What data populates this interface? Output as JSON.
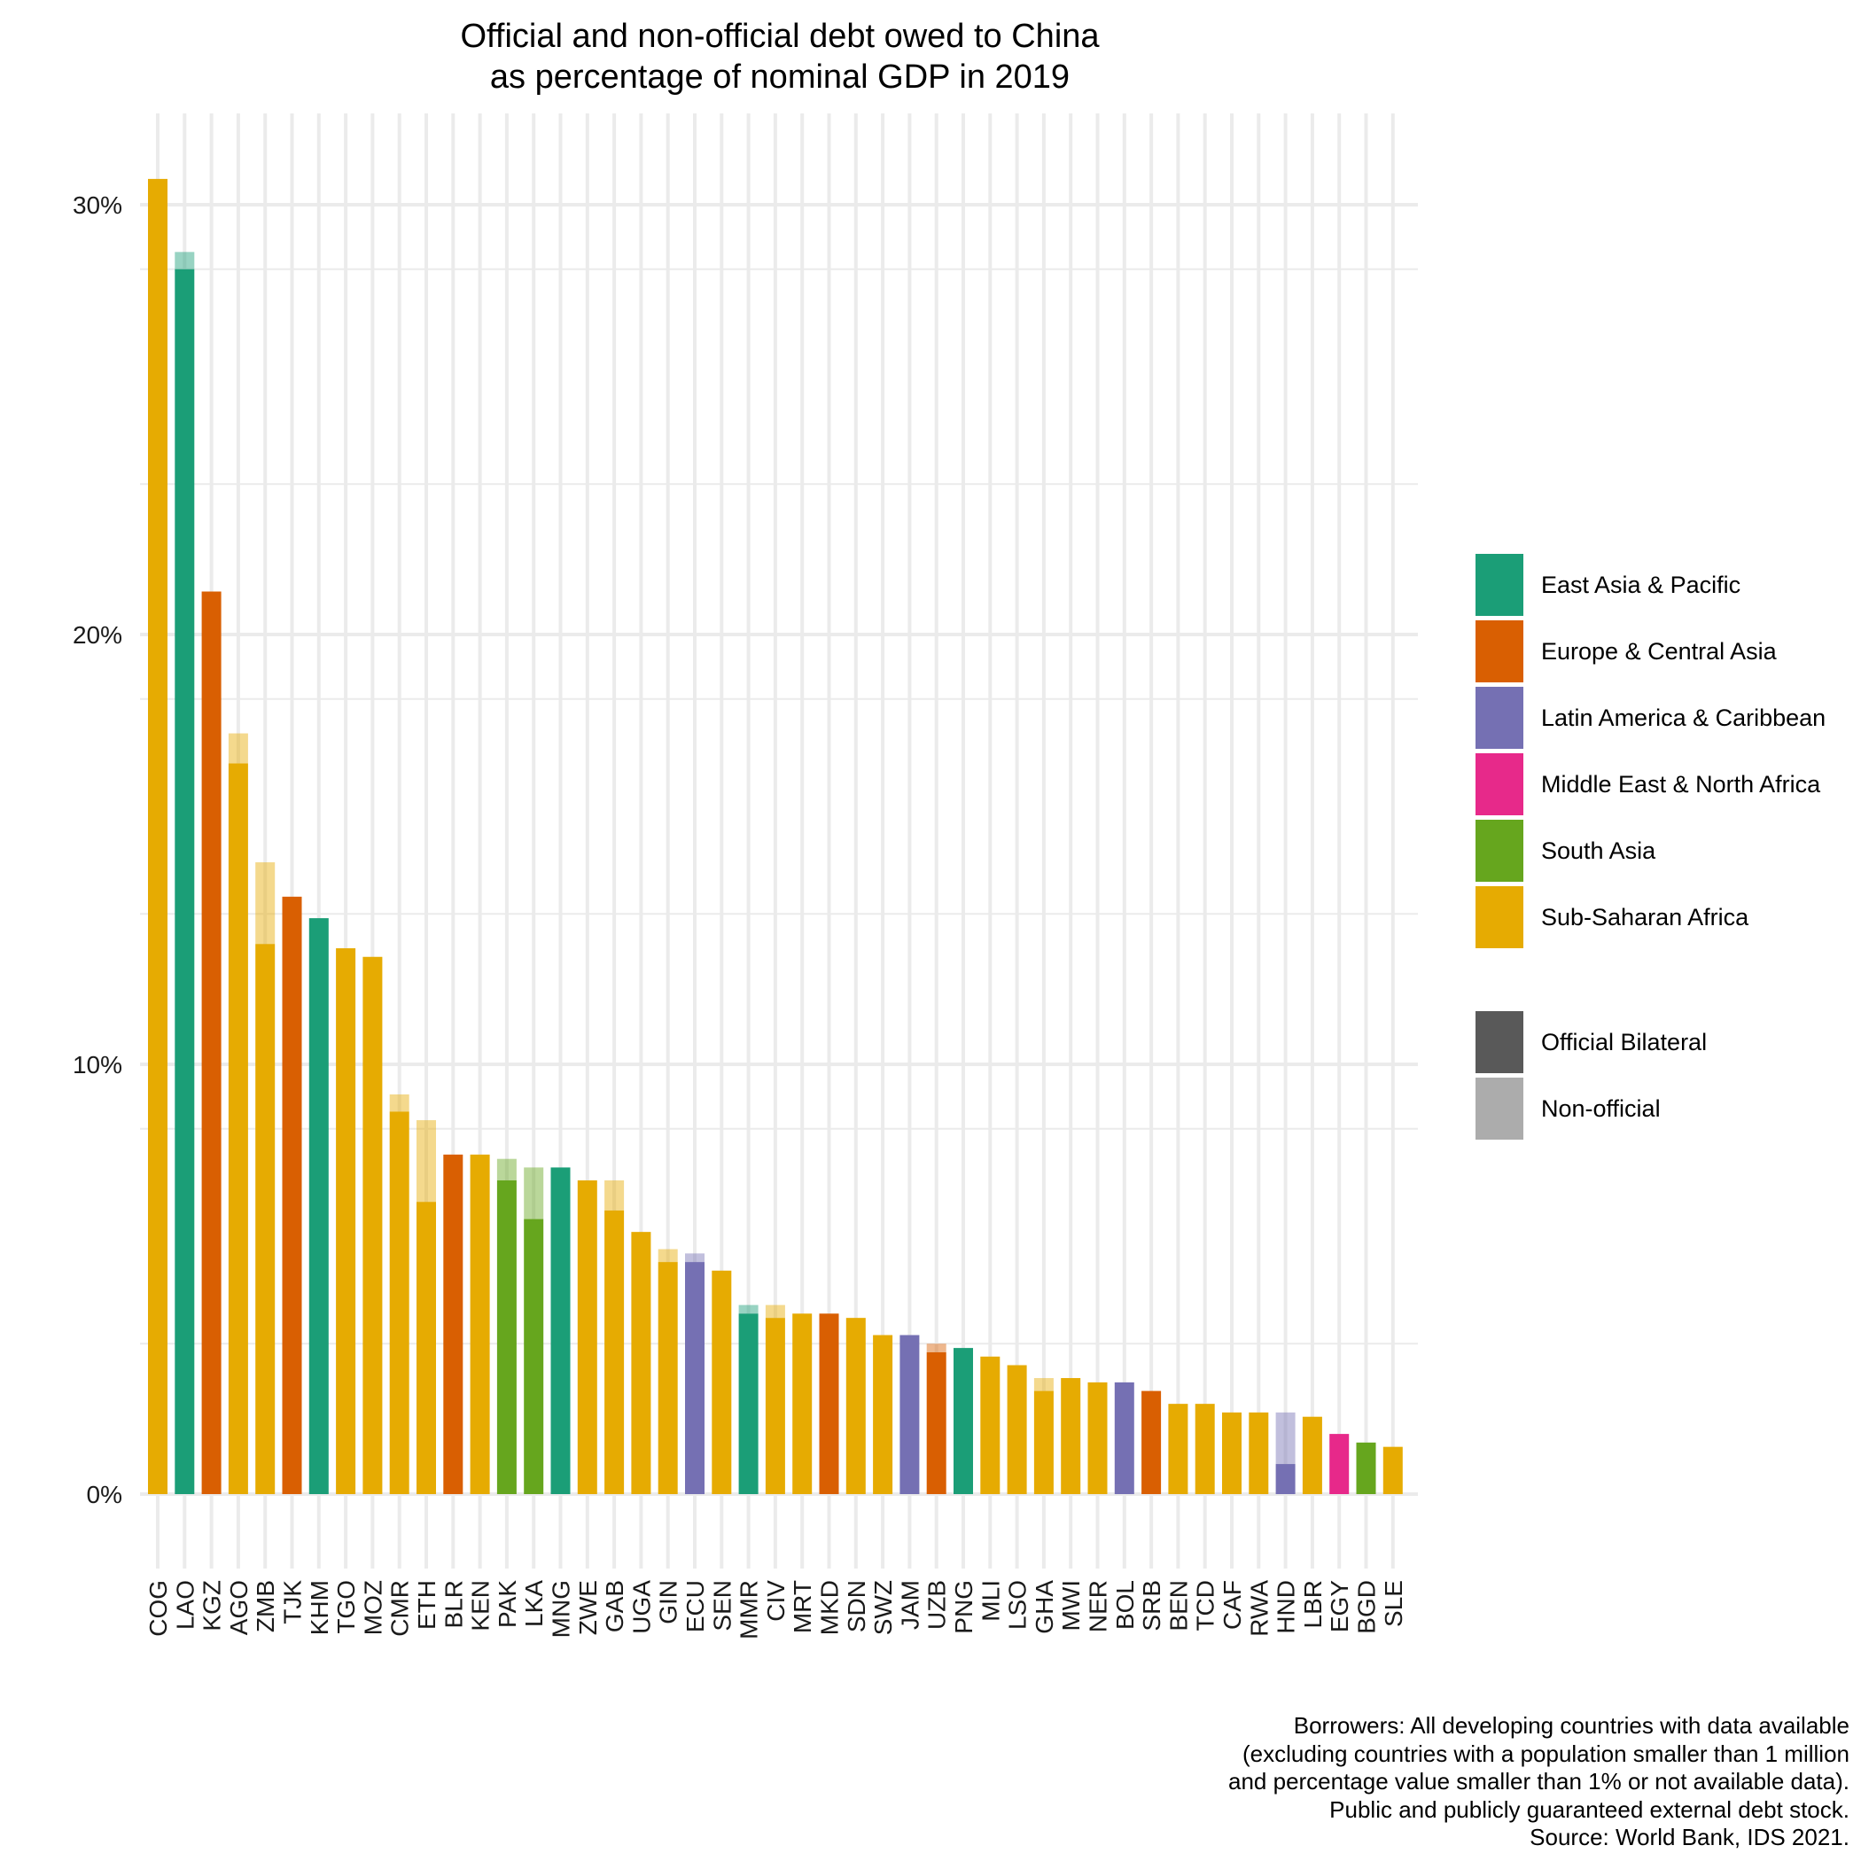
{
  "chart_data": {
    "type": "bar",
    "stacked": true,
    "title_lines": [
      "Official and non-official debt owed to China",
      "as percentage of nominal GDP in 2019"
    ],
    "y_unit": "%",
    "ylim": [
      0,
      30
    ],
    "y_ticks": [
      0,
      10,
      20,
      30
    ],
    "y_tick_labels": [
      "0%",
      "10%",
      "20%",
      "30%"
    ],
    "grid": true,
    "categories": [
      "COG",
      "LAO",
      "KGZ",
      "AGO",
      "ZMB",
      "TJK",
      "KHM",
      "TGO",
      "MOZ",
      "CMR",
      "ETH",
      "BLR",
      "KEN",
      "PAK",
      "LKA",
      "MNG",
      "ZWE",
      "GAB",
      "UGA",
      "GIN",
      "ECU",
      "SEN",
      "MMR",
      "CIV",
      "MRT",
      "MKD",
      "SDN",
      "SWZ",
      "JAM",
      "UZB",
      "PNG",
      "MLI",
      "LSO",
      "GHA",
      "MWI",
      "NER",
      "BOL",
      "SRB",
      "BEN",
      "TCD",
      "CAF",
      "RWA",
      "HND",
      "LBR",
      "EGY",
      "BGD",
      "SLE"
    ],
    "regions": [
      "Sub-Saharan Africa",
      "East Asia & Pacific",
      "Europe & Central Asia",
      "Sub-Saharan Africa",
      "Sub-Saharan Africa",
      "Europe & Central Asia",
      "East Asia & Pacific",
      "Sub-Saharan Africa",
      "Sub-Saharan Africa",
      "Sub-Saharan Africa",
      "Sub-Saharan Africa",
      "Europe & Central Asia",
      "Sub-Saharan Africa",
      "South Asia",
      "South Asia",
      "East Asia & Pacific",
      "Sub-Saharan Africa",
      "Sub-Saharan Africa",
      "Sub-Saharan Africa",
      "Sub-Saharan Africa",
      "Latin America & Caribbean",
      "Sub-Saharan Africa",
      "East Asia & Pacific",
      "Sub-Saharan Africa",
      "Sub-Saharan Africa",
      "Europe & Central Asia",
      "Sub-Saharan Africa",
      "Sub-Saharan Africa",
      "Latin America & Caribbean",
      "Europe & Central Asia",
      "East Asia & Pacific",
      "Sub-Saharan Africa",
      "Sub-Saharan Africa",
      "Sub-Saharan Africa",
      "Sub-Saharan Africa",
      "Sub-Saharan Africa",
      "Latin America & Caribbean",
      "Europe & Central Asia",
      "Sub-Saharan Africa",
      "Sub-Saharan Africa",
      "Sub-Saharan Africa",
      "Sub-Saharan Africa",
      "Latin America & Caribbean",
      "Sub-Saharan Africa",
      "Middle East & North Africa",
      "South Asia",
      "Sub-Saharan Africa"
    ],
    "series": [
      {
        "name": "Official Bilateral",
        "values": [
          30.6,
          28.5,
          21.0,
          17.0,
          12.8,
          13.9,
          13.4,
          12.7,
          12.5,
          8.9,
          6.8,
          7.9,
          7.9,
          7.3,
          6.4,
          7.6,
          7.3,
          6.6,
          6.1,
          5.4,
          5.4,
          5.2,
          4.2,
          4.1,
          4.2,
          4.2,
          4.1,
          3.7,
          3.7,
          3.3,
          3.4,
          3.2,
          3.0,
          2.4,
          2.7,
          2.6,
          2.6,
          2.4,
          2.1,
          2.1,
          1.9,
          1.9,
          0.7,
          1.8,
          1.4,
          1.2,
          1.1
        ]
      },
      {
        "name": "Non-official",
        "values": [
          0,
          0.4,
          0,
          0.7,
          1.9,
          0,
          0,
          0,
          0,
          0.4,
          1.9,
          0,
          0,
          0.5,
          1.2,
          0,
          0,
          0.7,
          0,
          0.3,
          0.2,
          0,
          0.2,
          0.3,
          0,
          0,
          0,
          0,
          0,
          0.2,
          0,
          0,
          0,
          0.3,
          0,
          0,
          0,
          0,
          0,
          0,
          0,
          0,
          1.2,
          0,
          0,
          0,
          0
        ]
      }
    ],
    "legend": {
      "placement": "right",
      "regions": [
        {
          "name": "East Asia & Pacific",
          "color": "#1b9e77"
        },
        {
          "name": "Europe & Central Asia",
          "color": "#d95f02"
        },
        {
          "name": "Latin America & Caribbean",
          "color": "#7570b3"
        },
        {
          "name": "Middle East & North Africa",
          "color": "#e7298a"
        },
        {
          "name": "South Asia",
          "color": "#66a61e"
        },
        {
          "name": "Sub-Saharan Africa",
          "color": "#e6ab02"
        }
      ],
      "types": [
        {
          "name": "Official Bilateral",
          "color": "#595959"
        },
        {
          "name": "Non-official",
          "color": "#acacac"
        }
      ]
    },
    "caption_lines": [
      "Borrowers: All developing countries with data available",
      "(excluding countries with a population smaller than 1 million",
      "and percentage value smaller than 1% or not available data).",
      "Public and publicly guaranteed external debt stock.",
      "Source: World Bank, IDS 2021."
    ]
  }
}
